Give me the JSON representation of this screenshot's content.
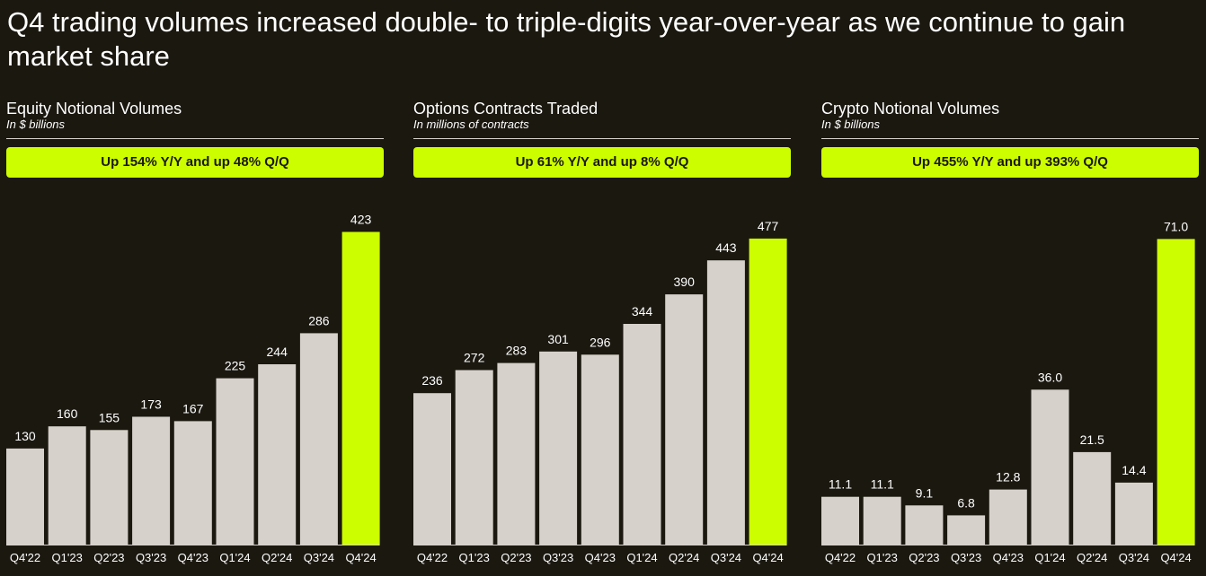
{
  "headline": "Q4 trading volumes increased double- to triple-digits year-over-year as we continue to gain market share",
  "colors": {
    "background": "#1b1810",
    "bar": "#d6d1cb",
    "highlight": "#cdfe00",
    "text": "#ffffff"
  },
  "chart_data": [
    {
      "type": "bar",
      "title": "Equity Notional Volumes",
      "subtitle": "In $ billions",
      "badge": "Up 154% Y/Y and up 48% Q/Q",
      "categories": [
        "Q4'22",
        "Q1'23",
        "Q2'23",
        "Q3'23",
        "Q4'23",
        "Q1'24",
        "Q2'24",
        "Q3'24",
        "Q4'24"
      ],
      "values": [
        130,
        160,
        155,
        173,
        167,
        225,
        244,
        286,
        423
      ],
      "labels": [
        "130",
        "160",
        "155",
        "173",
        "167",
        "225",
        "244",
        "286",
        "423"
      ],
      "highlight_index": 8,
      "ylim": [
        0,
        460
      ]
    },
    {
      "type": "bar",
      "title": "Options Contracts Traded",
      "subtitle": "In millions of contracts",
      "badge": "Up 61% Y/Y and up 8% Q/Q",
      "categories": [
        "Q4'22",
        "Q1'23",
        "Q2'23",
        "Q3'23",
        "Q4'23",
        "Q1'24",
        "Q2'24",
        "Q3'24",
        "Q4'24"
      ],
      "values": [
        236,
        272,
        283,
        301,
        296,
        344,
        390,
        443,
        477
      ],
      "labels": [
        "236",
        "272",
        "283",
        "301",
        "296",
        "344",
        "390",
        "443",
        "477"
      ],
      "highlight_index": 8,
      "ylim": [
        0,
        530
      ]
    },
    {
      "type": "bar",
      "title": "Crypto Notional Volumes",
      "subtitle": "In $ billions",
      "badge": "Up 455% Y/Y and up 393% Q/Q",
      "categories": [
        "Q4'22",
        "Q1'23",
        "Q2'23",
        "Q3'23",
        "Q4'23",
        "Q1'24",
        "Q2'24",
        "Q3'24",
        "Q4'24"
      ],
      "values": [
        11.1,
        11.1,
        9.1,
        6.8,
        12.8,
        36.0,
        21.5,
        14.4,
        71.0
      ],
      "labels": [
        "11.1",
        "11.1",
        "9.1",
        "6.8",
        "12.8",
        "36.0",
        "21.5",
        "14.4",
        "71.0"
      ],
      "highlight_index": 8,
      "ylim": [
        0,
        79
      ]
    }
  ]
}
